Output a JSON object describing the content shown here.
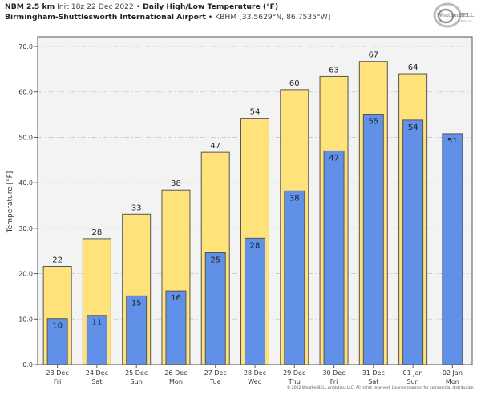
{
  "header": {
    "model": "NBM 2.5 km",
    "init": "Init 18z 22 Dec 2022",
    "bullet": "•",
    "product": "Daily High/Low Temperature (°F)",
    "station_name": "Birmingham-Shuttlesworth International Airport",
    "station_id": "KBHM [33.5629°N, 86.7535°W]"
  },
  "logo": {
    "text": "WeatherBELL",
    "sub": "Analytics LLC"
  },
  "footer": {
    "copyright": "© 2022 WeatherBELL Analytics, LLC. All rights reserved. License required for commercial distribution."
  },
  "colors": {
    "high": "#ffe27a",
    "low": "#6190e8",
    "outline": "#555555",
    "plot_bg": "#f3f3f3",
    "grid": "#c8c8c8"
  },
  "chart_data": {
    "type": "bar",
    "title": "Daily High/Low Temperature (°F)",
    "xlabel": "",
    "ylabel": "Temperature [°F]",
    "ylim": [
      0,
      72
    ],
    "yticks": [
      0,
      10,
      20,
      30,
      40,
      50,
      60,
      70
    ],
    "ytick_labels": [
      "0.0",
      "10.0",
      "20.0",
      "30.0",
      "40.0",
      "50.0",
      "60.0",
      "70.0"
    ],
    "grid": true,
    "categories": [
      [
        "23 Dec",
        "Fri"
      ],
      [
        "24 Dec",
        "Sat"
      ],
      [
        "25 Dec",
        "Sun"
      ],
      [
        "26 Dec",
        "Mon"
      ],
      [
        "27 Dec",
        "Tue"
      ],
      [
        "28 Dec",
        "Wed"
      ],
      [
        "29 Dec",
        "Thu"
      ],
      [
        "30 Dec",
        "Fri"
      ],
      [
        "31 Dec",
        "Sat"
      ],
      [
        "01 Jan",
        "Sun"
      ],
      [
        "02 Jan",
        "Mon"
      ]
    ],
    "series": [
      {
        "name": "High",
        "values": [
          21.6,
          27.7,
          33.1,
          38.4,
          46.7,
          54.2,
          60.5,
          63.4,
          66.7,
          64.0,
          null
        ],
        "labels": [
          "22",
          "28",
          "33",
          "38",
          "47",
          "54",
          "60",
          "63",
          "67",
          "64",
          null
        ]
      },
      {
        "name": "Low",
        "values": [
          10.1,
          10.8,
          15.1,
          16.2,
          24.6,
          27.8,
          38.2,
          47.0,
          55.1,
          53.8,
          50.8
        ],
        "labels": [
          "10",
          "11",
          "15",
          "16",
          "25",
          "28",
          "38",
          "47",
          "55",
          "54",
          "51"
        ]
      }
    ]
  }
}
